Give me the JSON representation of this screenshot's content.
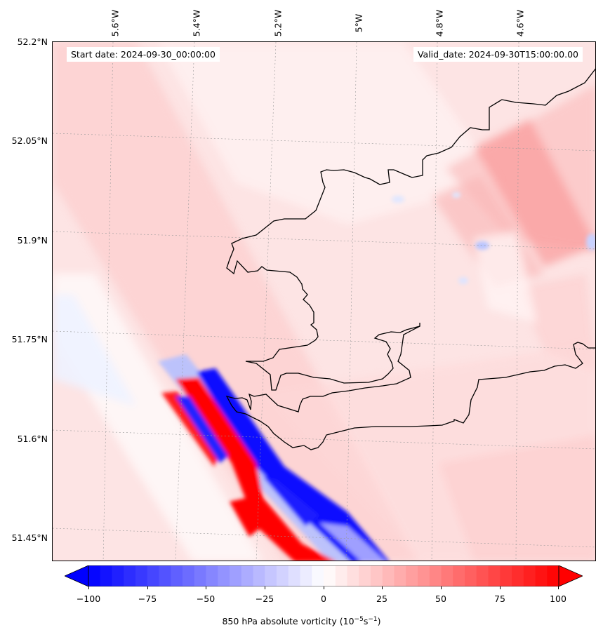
{
  "map": {
    "start_date": "Start date: 2024-09-30_00:00:00",
    "valid_date": "Valid_date: 2024-09-30T15:00:00.00",
    "longitude_labels": [
      "5.6°W",
      "5.4°W",
      "5.2°W",
      "5°W",
      "4.8°W",
      "4.6°W"
    ],
    "latitude_labels": [
      "52.2°N",
      "52.05°N",
      "51.9°N",
      "51.75°N",
      "51.6°N",
      "51.45°N"
    ]
  },
  "colorbar": {
    "ticks": [
      "−100",
      "−75",
      "−50",
      "−25",
      "0",
      "25",
      "50",
      "75",
      "100"
    ],
    "range": [
      -100,
      100
    ],
    "extend": "both",
    "colormap": "bwr",
    "colors": {
      "min": "#0000ff",
      "mid": "#ffffff",
      "max": "#ff0000"
    }
  },
  "colorbar_label": {
    "prefix": "850 hPa absolute vorticity (10",
    "exp1": "−5",
    "mid": "s",
    "exp2": "−1",
    "suffix": ")"
  }
}
